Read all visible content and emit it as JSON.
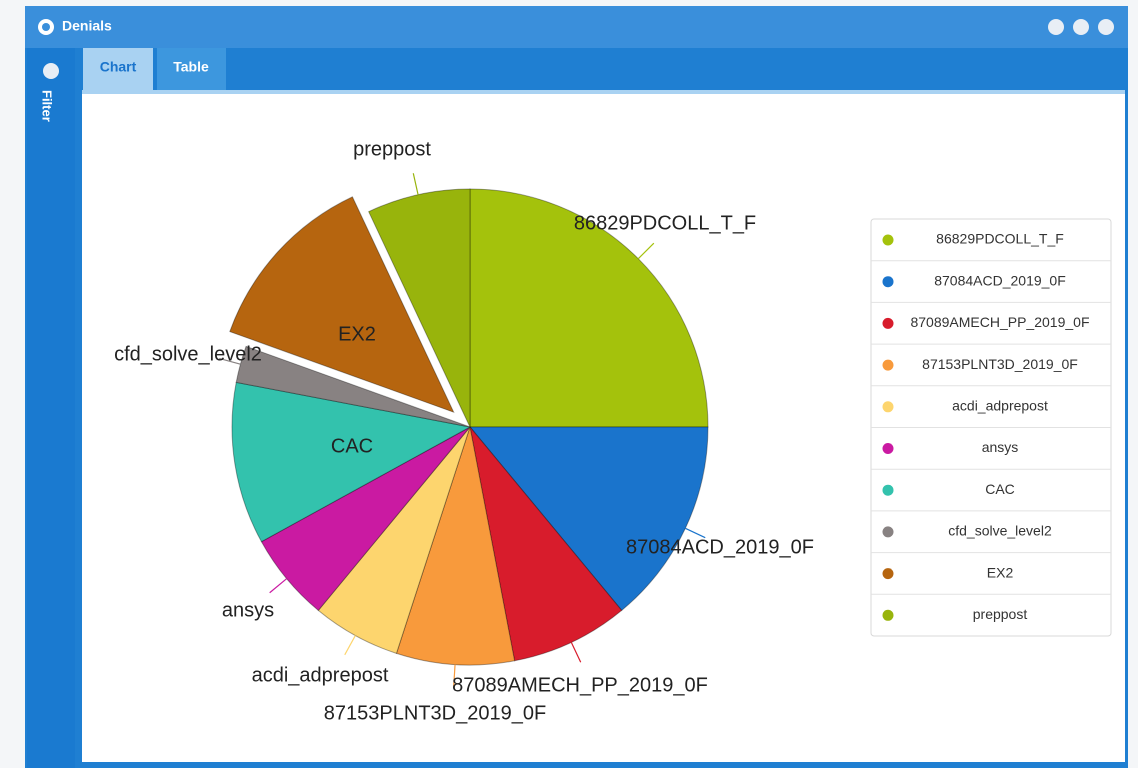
{
  "window": {
    "title": "Denials",
    "sidebar_label": "Filter",
    "tabs": [
      "Chart",
      "Table"
    ]
  },
  "chart_data": {
    "type": "pie",
    "categories": [
      "86829PDCOLL_T_F",
      "87084ACD_2019_0F",
      "87089AMECH_PP_2019_0F",
      "87153PLNT3D_2019_0F",
      "acdi_adprepost",
      "ansys",
      "CAC",
      "cfd_solve_level2",
      "EX2",
      "preppost"
    ],
    "values": [
      25,
      14,
      8,
      8,
      6,
      6,
      11,
      2.5,
      12.5,
      7
    ],
    "colors": [
      "#a4c20c",
      "#1a74cc",
      "#d81c2c",
      "#f89a3c",
      "#fdd56e",
      "#ca1aa2",
      "#33c2ad",
      "#888282",
      "#b6650f",
      "#98b40c"
    ],
    "exploded": 8,
    "legend": "right"
  }
}
